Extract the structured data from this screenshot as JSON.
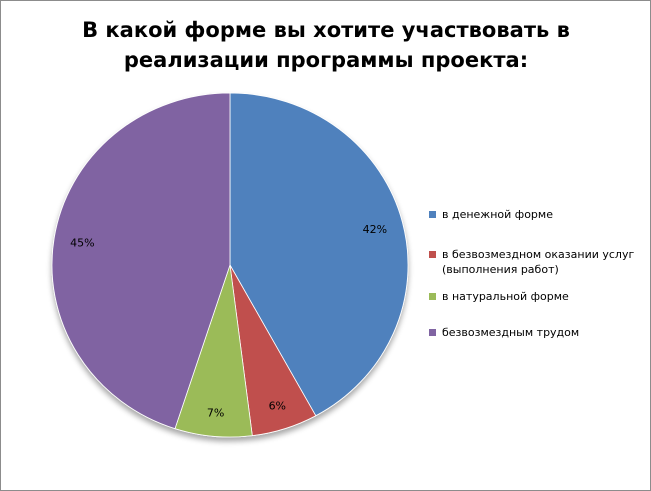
{
  "chart_data": {
    "type": "pie",
    "title": "В какой форме вы хотите участвовать в\nреализации программы проекта:",
    "slices": [
      {
        "label": "в денежной форме",
        "value": 42,
        "display": "42%",
        "color": "#4f81bd"
      },
      {
        "label": "в безвозмездном оказании услуг\n(выполнения работ)",
        "value": 6,
        "display": "6%",
        "color": "#c0504d"
      },
      {
        "label": "в натуральной форме",
        "value": 7,
        "display": "7%",
        "color": "#9bbb59"
      },
      {
        "label": "безвозмездным трудом",
        "value": 45,
        "display": "45%",
        "color": "#8064a2"
      }
    ],
    "legend_position": "right"
  }
}
